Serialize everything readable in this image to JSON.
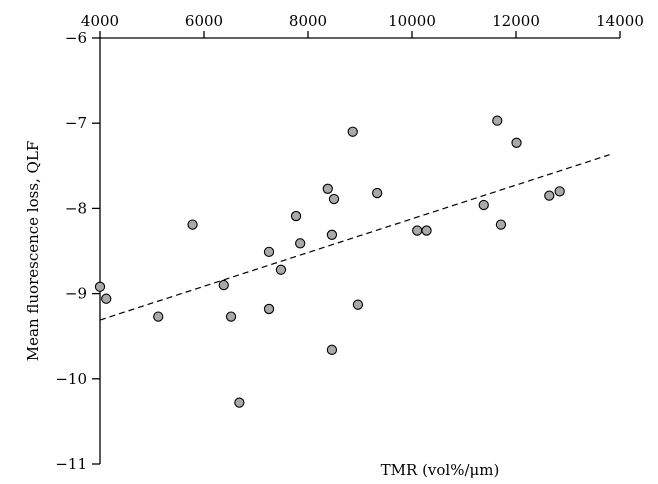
{
  "chart_data": {
    "type": "scatter",
    "title": "",
    "xlabel": "TMR (vol%/μm)",
    "ylabel": "Mean fluorescence loss, QLF",
    "xlim": [
      4000,
      14000
    ],
    "ylim": [
      -11,
      -6
    ],
    "x_ticks": [
      "4000",
      "6000",
      "8000",
      "10000",
      "12000",
      "14000"
    ],
    "y_ticks": [
      "−6",
      "−7",
      "−8",
      "−9",
      "−10",
      "−11"
    ],
    "x_axis_position": "top",
    "grid": false,
    "points": [
      {
        "x": 4000,
        "y": -8.92
      },
      {
        "x": 4120,
        "y": -9.06
      },
      {
        "x": 5120,
        "y": -9.27
      },
      {
        "x": 5780,
        "y": -8.19
      },
      {
        "x": 6380,
        "y": -8.9
      },
      {
        "x": 6520,
        "y": -9.27
      },
      {
        "x": 6680,
        "y": -10.28
      },
      {
        "x": 7250,
        "y": -8.51
      },
      {
        "x": 7250,
        "y": -9.18
      },
      {
        "x": 7480,
        "y": -8.72
      },
      {
        "x": 7770,
        "y": -8.09
      },
      {
        "x": 7850,
        "y": -8.41
      },
      {
        "x": 8380,
        "y": -7.77
      },
      {
        "x": 8460,
        "y": -8.31
      },
      {
        "x": 8460,
        "y": -9.66
      },
      {
        "x": 8500,
        "y": -7.89
      },
      {
        "x": 8860,
        "y": -7.1
      },
      {
        "x": 8960,
        "y": -9.13
      },
      {
        "x": 9330,
        "y": -7.82
      },
      {
        "x": 10100,
        "y": -8.26
      },
      {
        "x": 10280,
        "y": -8.26
      },
      {
        "x": 11380,
        "y": -7.96
      },
      {
        "x": 11640,
        "y": -6.97
      },
      {
        "x": 11710,
        "y": -8.19
      },
      {
        "x": 12010,
        "y": -7.23
      },
      {
        "x": 12640,
        "y": -7.85
      },
      {
        "x": 12840,
        "y": -7.8
      }
    ],
    "trendline": {
      "style": "dashed",
      "x": [
        4000,
        13800
      ],
      "y": [
        -9.31,
        -7.37
      ]
    },
    "colors": {
      "marker_fill": "#a9a9a9",
      "marker_stroke": "#000000",
      "axis": "#000000",
      "trendline": "#000000"
    }
  }
}
